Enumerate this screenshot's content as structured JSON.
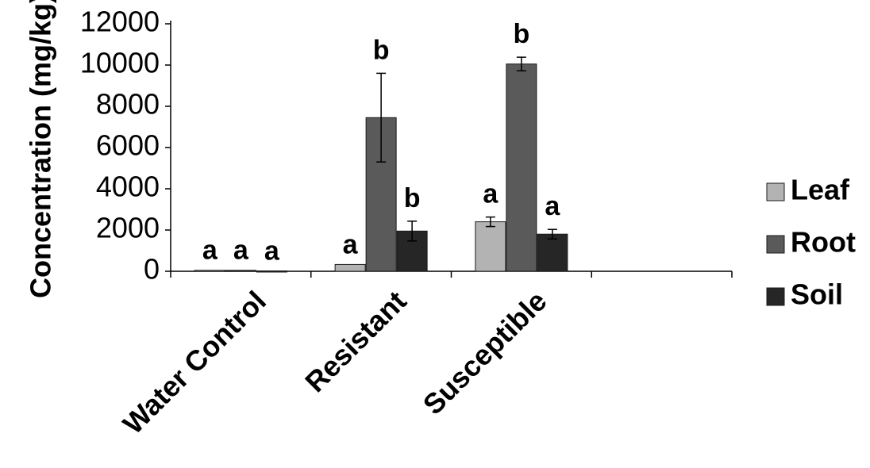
{
  "chart_data": {
    "type": "bar",
    "ylabel": "Concentration (mg/kg)",
    "xlabel": "",
    "ylim": [
      0,
      12000
    ],
    "yticks": [
      0,
      2000,
      4000,
      6000,
      8000,
      10000,
      12000
    ],
    "categories": [
      "Water Control",
      "Resistant",
      "Susceptible",
      ""
    ],
    "series": [
      {
        "name": "Leaf",
        "color": "#b3b3b3",
        "values": [
          50,
          330,
          2400,
          null
        ],
        "errors": [
          0,
          0,
          230,
          null
        ],
        "labels": [
          "a",
          "a",
          "a",
          ""
        ]
      },
      {
        "name": "Root",
        "color": "#5a5a5a",
        "values": [
          50,
          7450,
          10050,
          null
        ],
        "errors": [
          0,
          2150,
          330,
          null
        ],
        "labels": [
          "a",
          "b",
          "b",
          ""
        ]
      },
      {
        "name": "Soil",
        "color": "#262626",
        "values": [
          20,
          1950,
          1800,
          null
        ],
        "errors": [
          0,
          480,
          230,
          null
        ],
        "labels": [
          "a",
          "b",
          "a",
          ""
        ]
      }
    ],
    "legend_position": "right",
    "grid": false
  }
}
